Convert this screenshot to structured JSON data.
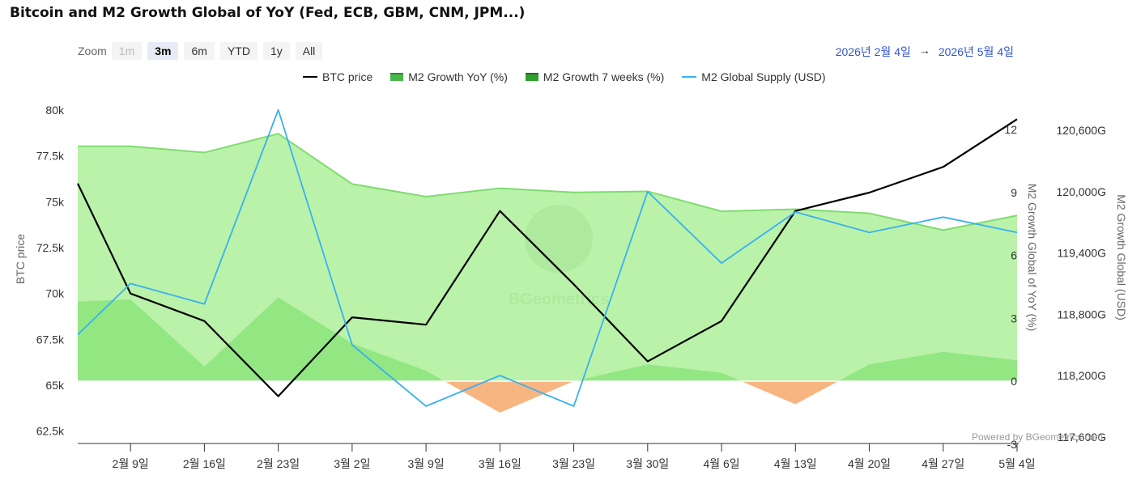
{
  "title": "Bitcoin and M2 Growth Global of YoY (Fed, ECB, GBM, CNM, JPM...)",
  "zoom": {
    "label": "Zoom",
    "buttons": [
      {
        "label": "1m",
        "state": "disabled"
      },
      {
        "label": "3m",
        "state": "active"
      },
      {
        "label": "6m",
        "state": "normal"
      },
      {
        "label": "YTD",
        "state": "normal"
      },
      {
        "label": "1y",
        "state": "normal"
      },
      {
        "label": "All",
        "state": "normal"
      }
    ]
  },
  "range": {
    "from": "2026년 2월 4일",
    "arrow": "→",
    "to": "2026년 5월 4일"
  },
  "legend": [
    {
      "label": "BTC price",
      "color": "#000000",
      "kind": "line"
    },
    {
      "label": "M2 Growth YoY (%)",
      "color": "#49b749",
      "kind": "area"
    },
    {
      "label": "M2 Growth 7 weeks (%)",
      "color": "#2e9e2e",
      "kind": "area"
    },
    {
      "label": "M2 Global Supply (USD)",
      "color": "#3ab0f0",
      "kind": "line"
    }
  ],
  "credit": "Powered by BGeometrics.com",
  "watermark": "BGeometrics",
  "chart_data": {
    "type": "line",
    "x": [
      "2026-02-04",
      "2026-02-09",
      "2026-02-16",
      "2026-02-23",
      "2026-03-02",
      "2026-03-09",
      "2026-03-16",
      "2026-03-23",
      "2026-03-30",
      "2026-04-06",
      "2026-04-13",
      "2026-04-20",
      "2026-04-27",
      "2026-05-04"
    ],
    "x_tick_labels": [
      "2월 9일",
      "2월 16일",
      "2월 23일",
      "3월 2일",
      "3월 9일",
      "3월 16일",
      "3월 23일",
      "3월 30일",
      "4월 6일",
      "4월 13일",
      "4월 20일",
      "4월 27일",
      "5월 4일"
    ],
    "axes": {
      "btc": {
        "label": "BTC price",
        "range": [
          62500,
          80000
        ],
        "ticks": [
          "62.5k",
          "65k",
          "67.5k",
          "70k",
          "72.5k",
          "75k",
          "77.5k",
          "80k"
        ],
        "tick_values": [
          62500,
          65000,
          67500,
          70000,
          72500,
          75000,
          77500,
          80000
        ]
      },
      "yoy": {
        "label": "M2 Growth Global of YoY (%)",
        "range": [
          -3,
          12
        ],
        "ticks": [
          "-3",
          "0",
          "3",
          "6",
          "9",
          "12"
        ],
        "tick_values": [
          -3,
          0,
          3,
          6,
          9,
          12
        ]
      },
      "supply": {
        "label": "M2 Growth Global (USD)",
        "range": [
          117600,
          120600
        ],
        "ticks": [
          "117,600G",
          "118,200G",
          "118,800G",
          "119,400G",
          "120,000G",
          "120,600G"
        ],
        "tick_values": [
          117600,
          118200,
          118800,
          119400,
          120000,
          120600
        ]
      }
    },
    "series": [
      {
        "name": "BTC price",
        "axis": "btc",
        "color": "#000000",
        "values": [
          76000,
          70000,
          68500,
          64400,
          68700,
          68300,
          74500,
          70500,
          66300,
          68500,
          74500,
          75500,
          76900,
          79500
        ]
      },
      {
        "name": "M2 Growth YoY (%)",
        "axis": "yoy",
        "color": "#7fdc6f",
        "fill": "#aef09a",
        "values": [
          11.2,
          11.2,
          10.9,
          11.8,
          9.4,
          8.8,
          9.2,
          9.0,
          9.05,
          8.1,
          8.2,
          8.0,
          7.2,
          7.9
        ]
      },
      {
        "name": "M2 Growth 7 weeks (%)",
        "axis": "yoy",
        "color": "#7fdc6f",
        "fill": "#8ee57e",
        "neg_fill": "#f7b582",
        "values": [
          3.8,
          3.9,
          0.7,
          4.0,
          1.8,
          0.5,
          -1.5,
          0.0,
          0.8,
          0.4,
          -1.1,
          0.8,
          1.4,
          1.0
        ]
      },
      {
        "name": "M2 Global Supply (USD)",
        "axis": "supply",
        "color": "#3ab0f0",
        "values": [
          118600,
          119100,
          118900,
          120800,
          118500,
          117900,
          118200,
          117900,
          120000,
          119300,
          119800,
          119600,
          119750,
          119600
        ]
      }
    ]
  }
}
